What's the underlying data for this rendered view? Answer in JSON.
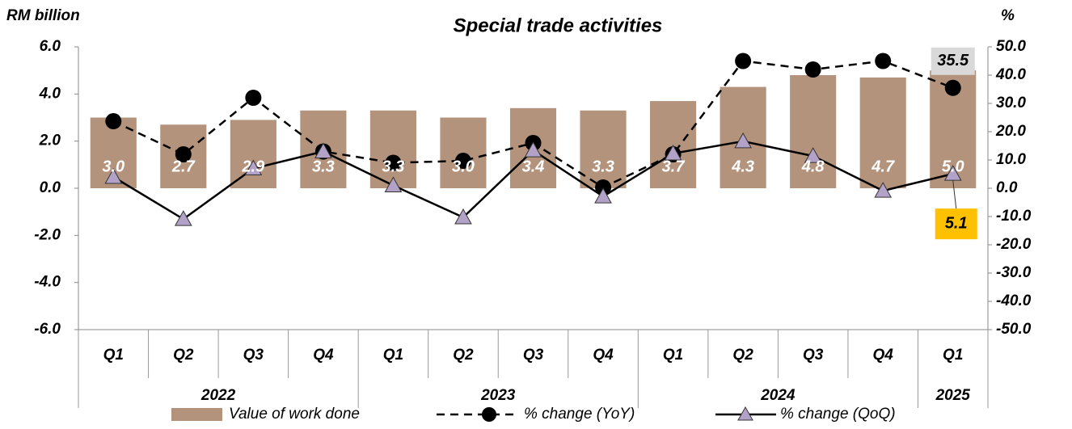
{
  "chart_data": {
    "type": "bar_line",
    "title": "Special trade activities",
    "y_label": "RM billion",
    "y2_label": "%",
    "categories": [
      "Q1",
      "Q2",
      "Q3",
      "Q4",
      "Q1",
      "Q2",
      "Q3",
      "Q4",
      "Q1",
      "Q2",
      "Q3",
      "Q4",
      "Q1"
    ],
    "years": [
      "2022",
      null,
      null,
      null,
      "2023",
      null,
      null,
      null,
      "2024",
      null,
      null,
      null,
      "2025"
    ],
    "series": [
      {
        "name": "Value of  work done",
        "kind": "bar",
        "color": "#b3937b",
        "values": [
          3.0,
          2.7,
          2.9,
          3.3,
          3.3,
          3.0,
          3.4,
          3.3,
          3.7,
          4.3,
          4.8,
          4.7,
          5.0
        ],
        "value_labels": [
          "3.0",
          "2.7",
          "2.9",
          "3.3",
          "3.3",
          "3.0",
          "3.4",
          "3.3",
          "3.7",
          "4.3",
          "4.8",
          "4.7",
          "5.0"
        ]
      },
      {
        "name": "% change (YoY)",
        "kind": "line",
        "dash": true,
        "marker": "circle",
        "color": "#000000",
        "axis": "y2",
        "values": [
          23.7,
          12,
          32,
          13,
          9,
          9.7,
          16,
          0.3,
          12,
          45,
          42,
          45,
          35.5
        ]
      },
      {
        "name": "% change (QoQ)",
        "kind": "line",
        "dash": false,
        "marker": "triangle",
        "color": "#000000",
        "marker_color": "#b3a2c7",
        "axis": "y2",
        "values": [
          4,
          -10.9,
          7,
          13,
          1,
          -10.3,
          13.4,
          -2.9,
          12.3,
          16.6,
          11.4,
          -0.9,
          5.1
        ]
      }
    ],
    "ylim": [
      -6,
      6
    ],
    "yticks": [
      {
        "value": -6,
        "label": "-6.0"
      },
      {
        "value": -4,
        "label": "-4.0"
      },
      {
        "value": -2,
        "label": "-2.0"
      },
      {
        "value": 0,
        "label": "0.0"
      },
      {
        "value": 2,
        "label": "2.0"
      },
      {
        "value": 4,
        "label": "4.0"
      },
      {
        "value": 6,
        "label": "6.0"
      }
    ],
    "y2lim": [
      -50,
      50
    ],
    "y2ticks": [
      {
        "value": -50,
        "label": "-50.0"
      },
      {
        "value": -40,
        "label": "-40.0"
      },
      {
        "value": -30,
        "label": "-30.0"
      },
      {
        "value": -20,
        "label": "-20.0"
      },
      {
        "value": -10,
        "label": "-10.0"
      },
      {
        "value": 0,
        "label": "0.0"
      },
      {
        "value": 10,
        "label": "10.0"
      },
      {
        "value": 20,
        "label": "20.0"
      },
      {
        "value": 30,
        "label": "30.0"
      },
      {
        "value": 40,
        "label": "40.0"
      },
      {
        "value": 50,
        "label": "50.0"
      }
    ],
    "grid": false
  }
}
